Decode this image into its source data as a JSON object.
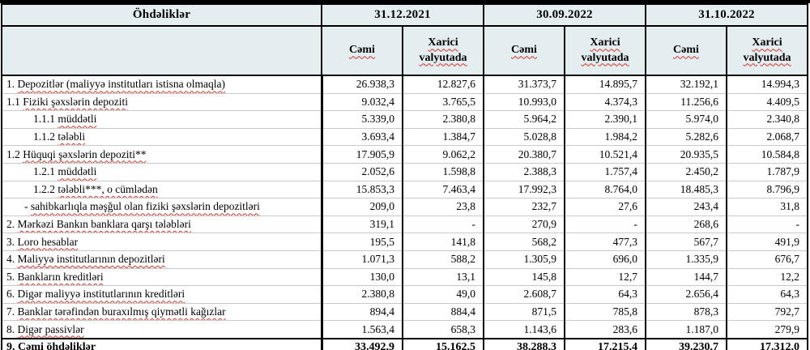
{
  "table": {
    "title": "Öhdəliklər",
    "col_groups": [
      {
        "date": "31.12.2021"
      },
      {
        "date": "30.09.2022"
      },
      {
        "date": "31.10.2022"
      }
    ],
    "sub_headers": {
      "total": "Cəmi",
      "foreign": "Xarici valyutada"
    },
    "rows": [
      {
        "num": "1.",
        "label": "Depozitlər (maliyyə institutları istisna olmaqla)",
        "indent": 0,
        "bold": false,
        "values": [
          "26.938,3",
          "12.827,6",
          "31.373,7",
          "14.895,7",
          "32.192,1",
          "14.994,3"
        ]
      },
      {
        "num": "1.1",
        "label": "Fiziki şəxslərin depoziti",
        "indent": 0,
        "bold": false,
        "values": [
          "9.032,4",
          "3.765,5",
          "10.993,0",
          "4.374,3",
          "11.256,6",
          "4.409,5"
        ]
      },
      {
        "num": "1.1.1",
        "label": "müddətli",
        "indent": 1,
        "bold": false,
        "values": [
          "5.339,0",
          "2.380,8",
          "5.964,2",
          "2.390,1",
          "5.974,0",
          "2.340,8"
        ]
      },
      {
        "num": "1.1.2",
        "label": "tələbli",
        "indent": 1,
        "bold": false,
        "values": [
          "3.693,4",
          "1.384,7",
          "5.028,8",
          "1.984,2",
          "5.282,6",
          "2.068,7"
        ]
      },
      {
        "num": "1.2",
        "label": "Hüquqi şəxslərin depoziti**",
        "indent": 0,
        "bold": false,
        "values": [
          "17.905,9",
          "9.062,2",
          "20.380,7",
          "10.521,4",
          "20.935,5",
          "10.584,8"
        ]
      },
      {
        "num": "1.2.1",
        "label": "müddətli",
        "indent": 1,
        "bold": false,
        "values": [
          "2.052,6",
          "1.598,8",
          "2.388,3",
          "1.757,4",
          "2.450,2",
          "1.787,9"
        ]
      },
      {
        "num": "1.2.2",
        "label": "tələbli***, o cümlədən",
        "indent": 1,
        "bold": false,
        "values": [
          "15.853,3",
          "7.463,4",
          "17.992,3",
          "8.764,0",
          "18.485,3",
          "8.796,9"
        ]
      },
      {
        "num": "-",
        "label": "sahibkarlıqla məşğul olan fiziki şəxslərin depozitləri",
        "indent": 2,
        "bold": false,
        "values": [
          "209,0",
          "23,8",
          "232,7",
          "27,6",
          "243,4",
          "31,8"
        ]
      },
      {
        "num": "2.",
        "label": "Mərkəzi Bankın banklara qarşı tələbləri",
        "indent": 0,
        "bold": false,
        "values": [
          "319,1",
          "-",
          "270,9",
          "-",
          "268,6",
          "-"
        ]
      },
      {
        "num": "3.",
        "label": "Loro hesablar",
        "indent": 0,
        "bold": false,
        "values": [
          "195,5",
          "141,8",
          "568,2",
          "477,3",
          "567,7",
          "491,9"
        ]
      },
      {
        "num": "4.",
        "label": "Maliyyə institutlarının  depozitləri",
        "indent": 0,
        "bold": false,
        "values": [
          "1.071,3",
          "588,2",
          "1.305,9",
          "696,0",
          "1.335,9",
          "676,7"
        ]
      },
      {
        "num": "5.",
        "label": "Bankların kreditləri",
        "indent": 0,
        "bold": false,
        "values": [
          "130,0",
          "13,1",
          "145,8",
          "12,7",
          "144,7",
          "12,2"
        ]
      },
      {
        "num": "6.",
        "label": "Digər maliyyə institutlarının kreditləri",
        "indent": 0,
        "bold": false,
        "values": [
          "2.380,8",
          "49,0",
          "2.608,7",
          "64,3",
          "2.656,4",
          "64,3"
        ]
      },
      {
        "num": "7.",
        "label": "Banklar tərəfindən buraxılmış qiymətli kağızlar",
        "indent": 0,
        "bold": false,
        "values": [
          "894,4",
          "884,4",
          "871,5",
          "785,8",
          "878,3",
          "792,7"
        ]
      },
      {
        "num": "8.",
        "label": "Digər passivlər",
        "indent": 0,
        "bold": false,
        "values": [
          "1.563,4",
          "658,3",
          "1.143,6",
          "283,6",
          "1.187,0",
          "279,9"
        ]
      },
      {
        "num": "9.",
        "label": "Cəmi öhdəliklər",
        "indent": 0,
        "bold": true,
        "values": [
          "33.492,9",
          "15.162,5",
          "38.288,3",
          "17.215,4",
          "39.230,7",
          "17.312,0"
        ]
      }
    ]
  },
  "colors": {
    "header_bg": "#e4eef1",
    "strip_bg": "#ddecf2",
    "border": "#000000",
    "row_separator": "#c9c9c9",
    "spellcheck_underline": "#d93025"
  }
}
